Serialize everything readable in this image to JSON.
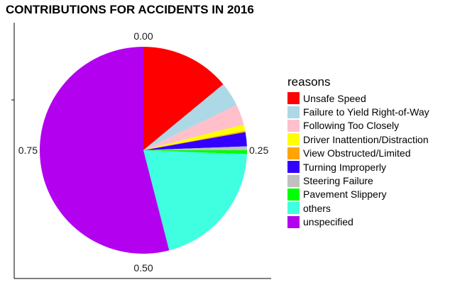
{
  "chart_data": {
    "type": "pie",
    "title": "CONTRIBUTIONS FOR ACCIDENTS IN 2016",
    "legend_title": "reasons",
    "legend_position": "right",
    "theta_ticks": [
      "0.00",
      "0.25",
      "0.50",
      "0.75"
    ],
    "slices": [
      {
        "label": "Unsafe Speed",
        "value": 0.14,
        "color": "#ff0000"
      },
      {
        "label": "Failure to Yield Right-of-Way",
        "value": 0.038,
        "color": "#add8e6"
      },
      {
        "label": "Following Too Closely",
        "value": 0.032,
        "color": "#ffc0cb"
      },
      {
        "label": "Driver Inattention/Distraction",
        "value": 0.01,
        "color": "#ffff00"
      },
      {
        "label": "View Obstructed/Limited",
        "value": 0.002,
        "color": "#ffa500"
      },
      {
        "label": "Turning Improperly",
        "value": 0.022,
        "color": "#3300ff"
      },
      {
        "label": "Steering Failure",
        "value": 0.006,
        "color": "#c0c0c0"
      },
      {
        "label": "Pavement Slippery",
        "value": 0.006,
        "color": "#00ff00"
      },
      {
        "label": "others",
        "value": 0.204,
        "color": "#40ffe0"
      },
      {
        "label": "unspecified",
        "value": 0.54,
        "color": "#b300ee"
      }
    ]
  }
}
